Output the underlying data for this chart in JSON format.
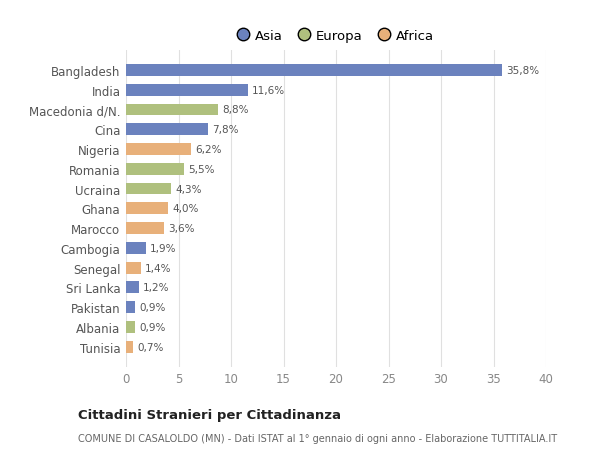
{
  "countries": [
    "Bangladesh",
    "India",
    "Macedonia d/N.",
    "Cina",
    "Nigeria",
    "Romania",
    "Ucraina",
    "Ghana",
    "Marocco",
    "Cambogia",
    "Senegal",
    "Sri Lanka",
    "Pakistan",
    "Albania",
    "Tunisia"
  ],
  "values": [
    35.8,
    11.6,
    8.8,
    7.8,
    6.2,
    5.5,
    4.3,
    4.0,
    3.6,
    1.9,
    1.4,
    1.2,
    0.9,
    0.9,
    0.7
  ],
  "labels": [
    "35,8%",
    "11,6%",
    "8,8%",
    "7,8%",
    "6,2%",
    "5,5%",
    "4,3%",
    "4,0%",
    "3,6%",
    "1,9%",
    "1,4%",
    "1,2%",
    "0,9%",
    "0,9%",
    "0,7%"
  ],
  "continents": [
    "Asia",
    "Asia",
    "Europa",
    "Asia",
    "Africa",
    "Europa",
    "Europa",
    "Africa",
    "Africa",
    "Asia",
    "Africa",
    "Asia",
    "Asia",
    "Europa",
    "Africa"
  ],
  "colors": {
    "Asia": "#6b82be",
    "Europa": "#afc07e",
    "Africa": "#e8b07a"
  },
  "xlim": [
    0,
    40
  ],
  "xticks": [
    0,
    5,
    10,
    15,
    20,
    25,
    30,
    35,
    40
  ],
  "title": "Cittadini Stranieri per Cittadinanza",
  "subtitle": "COMUNE DI CASALOLDO (MN) - Dati ISTAT al 1° gennaio di ogni anno - Elaborazione TUTTITALIA.IT",
  "background_color": "#ffffff",
  "grid_color": "#e0e0e0",
  "bar_height": 0.6,
  "legend_order": [
    "Asia",
    "Europa",
    "Africa"
  ]
}
